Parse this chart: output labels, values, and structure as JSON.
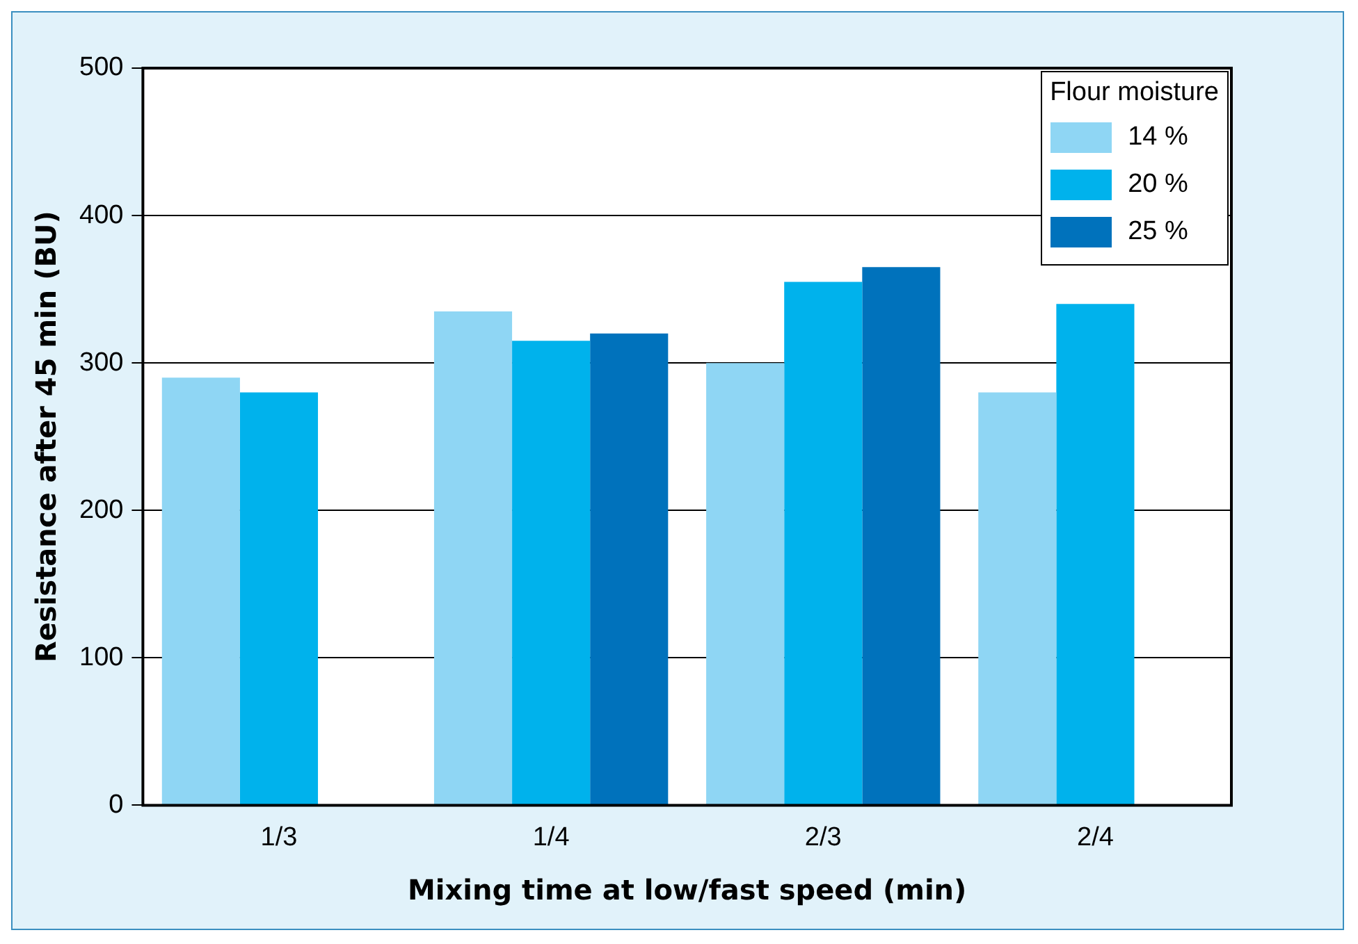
{
  "chart_data": {
    "type": "bar",
    "xlabel": "Mixing time at low/fast speed (min)",
    "ylabel": "Resistance after 45 min (BU)",
    "legend_title": "Flour moisture",
    "categories": [
      "1/3",
      "1/4",
      "2/3",
      "2/4"
    ],
    "series": [
      {
        "name": "14 %",
        "color": "#8fd6f4",
        "values": [
          290,
          335,
          300,
          280
        ]
      },
      {
        "name": "20 %",
        "color": "#00b2ec",
        "values": [
          280,
          315,
          355,
          340
        ]
      },
      {
        "name": "25 %",
        "color": "#0072bc",
        "values": [
          null,
          320,
          365,
          null
        ]
      }
    ],
    "ylim": [
      0,
      500
    ],
    "yticks": [
      0,
      100,
      200,
      300,
      400,
      500
    ],
    "grid": "y",
    "legend": "top right"
  }
}
